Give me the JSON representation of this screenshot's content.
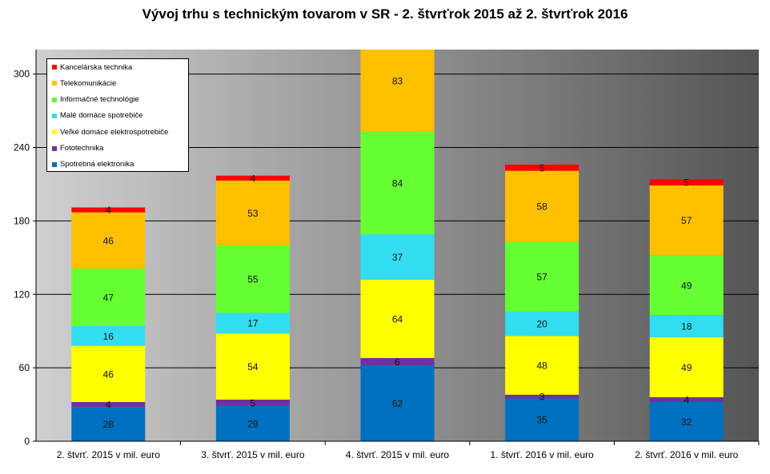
{
  "chart_data": {
    "type": "stacked-bar",
    "title": "Vývoj trhu s technickým tovarom v SR - 2. štvrťrok 2015 až 2. štvrťrok  2016",
    "categories": [
      "2. štvrť. 2015 v mil. euro",
      "3. štvrť. 2015 v mil. euro",
      "4. štvrť. 2015 v mil. euro",
      "1. štvrť. 2016 v mil. euro",
      "2. štvrť. 2016 v mil. euro"
    ],
    "ylim": [
      0,
      320
    ],
    "yticks": [
      "0",
      "60",
      "120",
      "180",
      "240",
      "300"
    ],
    "ytick_values": [
      0,
      60,
      120,
      180,
      240,
      300
    ],
    "legend_position": "top-left",
    "series": [
      {
        "name": "Spotrebná elektronika",
        "color": "#0070c0",
        "values": [
          28,
          29,
          62,
          35,
          32
        ]
      },
      {
        "name": "Fototechnika",
        "color": "#7030a0",
        "values": [
          4,
          5,
          6,
          3,
          4
        ]
      },
      {
        "name": "Veľké domáce elektrospotrebiče",
        "color": "#ffff00",
        "values": [
          46,
          54,
          64,
          48,
          49
        ]
      },
      {
        "name": "Malé domáce spotrebiče",
        "color": "#33ddf0",
        "values": [
          16,
          17,
          37,
          20,
          18
        ]
      },
      {
        "name": "Informačné technológie",
        "color": "#66ff33",
        "values": [
          47,
          55,
          84,
          57,
          49
        ]
      },
      {
        "name": "Telekomunikácie",
        "color": "#ffc000",
        "values": [
          46,
          53,
          83,
          58,
          57
        ]
      },
      {
        "name": "Kancelárska technika",
        "color": "#ff0000",
        "values": [
          4,
          4,
          null,
          5,
          5
        ]
      }
    ]
  }
}
